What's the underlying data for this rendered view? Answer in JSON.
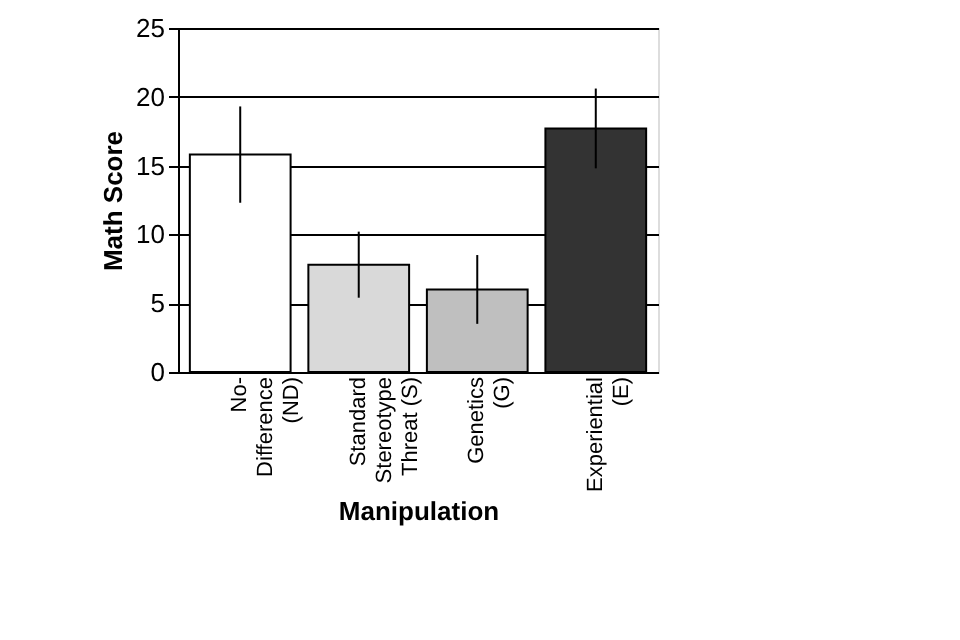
{
  "chart_data": {
    "type": "bar",
    "xlabel": "Manipulation",
    "ylabel": "Math Score",
    "categories": [
      "No-\nDifference\n(ND)",
      "Standard\nStereotype\nThreat (S)",
      "Genetics\n(G)",
      "Experiential\n(E)"
    ],
    "values": [
      15.8,
      7.8,
      6.0,
      17.7
    ],
    "errors": [
      3.5,
      2.4,
      2.5,
      2.9
    ],
    "colors": [
      "#ffffff",
      "#d9d9d9",
      "#bfbfbf",
      "#333333"
    ],
    "ylim": [
      0,
      25
    ],
    "yticks": [
      0,
      5,
      10,
      15,
      20,
      25
    ],
    "grid": "y"
  }
}
